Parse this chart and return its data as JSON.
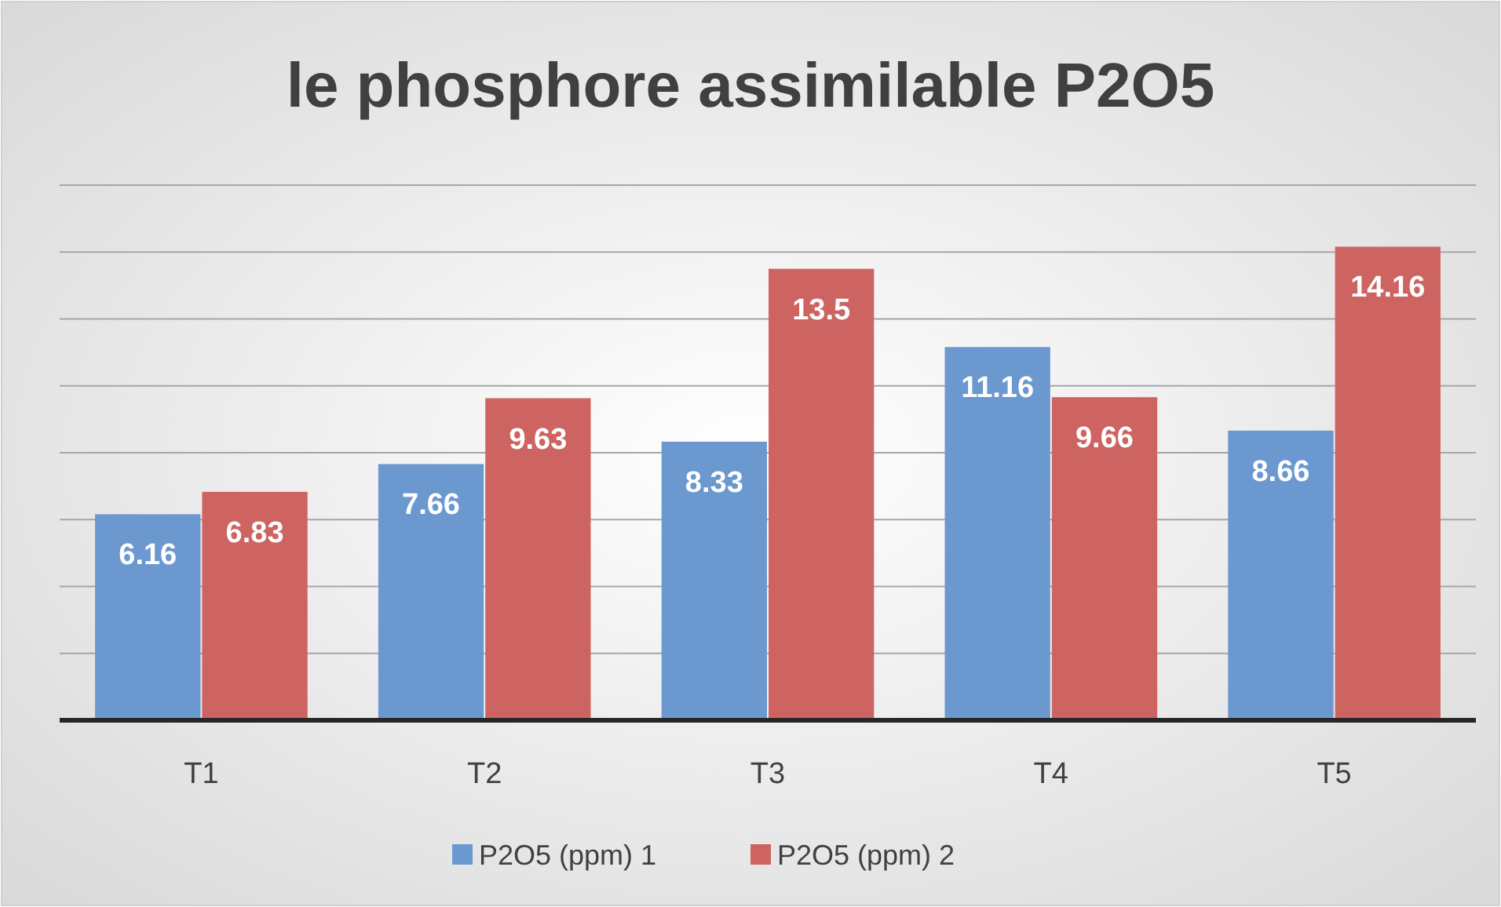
{
  "chart_data": {
    "type": "bar",
    "title": "le phosphore assimilable P2O5",
    "categories": [
      "T1",
      "T2",
      "T3",
      "T4",
      "T5"
    ],
    "series": [
      {
        "name": "P2O5 (ppm) 1",
        "color": "#6a98cf",
        "values": [
          6.16,
          7.66,
          8.33,
          11.16,
          8.66
        ]
      },
      {
        "name": "P2O5 (ppm) 2",
        "color": "#cd6461",
        "values": [
          6.83,
          9.63,
          13.5,
          9.66,
          14.16
        ]
      }
    ],
    "ylim": [
      0,
      16
    ],
    "yticks": [
      0,
      2,
      4,
      6,
      8,
      10,
      12,
      14,
      16
    ],
    "tick_labels": "x",
    "grid": "y",
    "legend": "bottom",
    "data_labels": true
  }
}
